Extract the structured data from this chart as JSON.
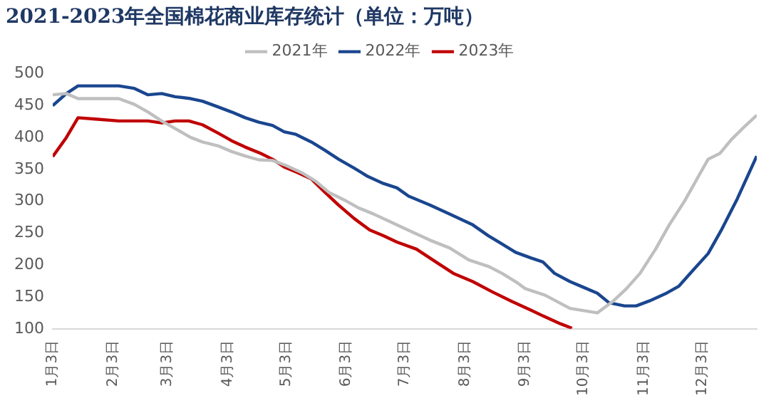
{
  "chart_data": {
    "type": "line",
    "title": "2021-2023年全国棉花商业库存统计（单位：万吨）",
    "xlim": [
      "--01-03",
      "--12-31"
    ],
    "xticks": [
      {
        "value": "--01-03",
        "label": "1月3日"
      },
      {
        "value": "--02-03",
        "label": "2月3日"
      },
      {
        "value": "--03-03",
        "label": "3月3日"
      },
      {
        "value": "--04-03",
        "label": "4月3日"
      },
      {
        "value": "--05-03",
        "label": "5月3日"
      },
      {
        "value": "--06-03",
        "label": "6月3日"
      },
      {
        "value": "--07-03",
        "label": "7月3日"
      },
      {
        "value": "--08-03",
        "label": "8月3日"
      },
      {
        "value": "--09-03",
        "label": "9月3日"
      },
      {
        "value": "--10-03",
        "label": "10月3日"
      },
      {
        "value": "--11-03",
        "label": "11月3日"
      },
      {
        "value": "--12-03",
        "label": "12月3日"
      }
    ],
    "ylim": [
      100,
      500
    ],
    "yticks": [
      100,
      150,
      200,
      250,
      300,
      350,
      400,
      450,
      500
    ],
    "grid": false,
    "legend": "top right",
    "marker": "none",
    "line_style": "solid",
    "series": [
      {
        "name": "2021年",
        "color": "#bfbfbf",
        "x": [
          "--01-03",
          "--01-10",
          "--01-16",
          "--02-06",
          "--02-14",
          "--02-21",
          "--02-28",
          "--03-07",
          "--03-15",
          "--03-21",
          "--03-29",
          "--04-05",
          "--04-12",
          "--04-19",
          "--04-26",
          "--05-03",
          "--05-11",
          "--05-18",
          "--05-25",
          "--06-02",
          "--06-09",
          "--06-17",
          "--06-24",
          "--07-06",
          "--07-16",
          "--07-26",
          "--08-05",
          "--08-15",
          "--08-22",
          "--08-29",
          "--09-03",
          "--09-13",
          "--09-26",
          "--10-10",
          "--10-18",
          "--10-25",
          "--11-01",
          "--11-09",
          "--11-16",
          "--11-24",
          "--12-01",
          "--12-06",
          "--12-12",
          "--12-18",
          "--12-25",
          "--12-31"
        ],
        "values": [
          467,
          469,
          461,
          461,
          452,
          440,
          426,
          414,
          400,
          393,
          387,
          378,
          371,
          365,
          364,
          356,
          345,
          332,
          314,
          302,
          290,
          280,
          270,
          253,
          239,
          227,
          208,
          198,
          187,
          174,
          163,
          153,
          132,
          125,
          143,
          163,
          187,
          225,
          263,
          301,
          339,
          366,
          375,
          397,
          418,
          435
        ]
      },
      {
        "name": "2022年",
        "color": "#1a468f",
        "x": [
          "--01-03",
          "--01-10",
          "--01-16",
          "--02-06",
          "--02-14",
          "--02-21",
          "--02-28",
          "--03-07",
          "--03-15",
          "--03-21",
          "--03-29",
          "--04-05",
          "--04-12",
          "--04-19",
          "--04-26",
          "--05-02",
          "--05-08",
          "--05-16",
          "--05-23",
          "--05-30",
          "--06-07",
          "--06-14",
          "--06-22",
          "--06-29",
          "--07-05",
          "--07-16",
          "--07-26",
          "--08-07",
          "--08-15",
          "--08-22",
          "--08-29",
          "--09-06",
          "--09-12",
          "--09-18",
          "--09-26",
          "--10-03",
          "--10-10",
          "--10-16",
          "--10-24",
          "--10-30",
          "--11-06",
          "--11-14",
          "--11-21",
          "--11-28",
          "--12-06",
          "--12-13",
          "--12-21",
          "--12-31"
        ],
        "values": [
          450,
          469,
          481,
          481,
          477,
          467,
          469,
          464,
          461,
          457,
          448,
          440,
          431,
          424,
          419,
          409,
          405,
          393,
          380,
          366,
          352,
          339,
          328,
          321,
          308,
          294,
          280,
          263,
          246,
          233,
          220,
          211,
          205,
          187,
          174,
          165,
          156,
          141,
          136,
          136,
          144,
          155,
          167,
          191,
          218,
          256,
          304,
          371
        ]
      },
      {
        "name": "2023年",
        "color": "#c00000",
        "x": [
          "--01-03",
          "--01-10",
          "--01-16",
          "--01-25",
          "--02-06",
          "--02-14",
          "--02-21",
          "--02-28",
          "--03-07",
          "--03-14",
          "--03-21",
          "--03-29",
          "--04-05",
          "--04-12",
          "--04-20",
          "--04-26",
          "--05-02",
          "--05-09",
          "--05-16",
          "--05-23",
          "--05-30",
          "--06-07",
          "--06-15",
          "--06-22",
          "--06-29",
          "--07-09",
          "--07-19",
          "--07-28",
          "--08-07",
          "--08-17",
          "--08-27",
          "--09-06",
          "--09-13",
          "--09-21",
          "--09-27"
        ],
        "values": [
          370,
          400,
          431,
          429,
          426,
          426,
          426,
          423,
          426,
          426,
          420,
          407,
          395,
          385,
          375,
          366,
          354,
          345,
          335,
          314,
          294,
          273,
          255,
          246,
          236,
          225,
          205,
          187,
          174,
          158,
          143,
          129,
          119,
          108,
          101
        ]
      }
    ]
  }
}
